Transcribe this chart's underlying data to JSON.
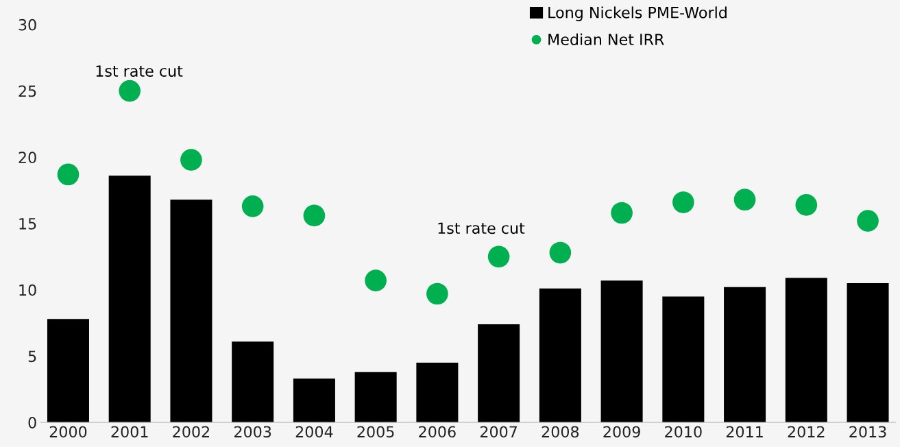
{
  "chart_data": {
    "type": "bar",
    "categories": [
      "2000",
      "2001",
      "2002",
      "2003",
      "2004",
      "2005",
      "2006",
      "2007",
      "2008",
      "2009",
      "2010",
      "2011",
      "2012",
      "2013"
    ],
    "series": [
      {
        "name": "Long Nickels PME-World",
        "color": "#000000",
        "values": [
          7.8,
          18.6,
          16.8,
          6.1,
          3.3,
          3.8,
          4.5,
          7.4,
          10.1,
          10.7,
          9.5,
          10.2,
          10.9,
          10.5
        ]
      },
      {
        "name": "Median Net IRR",
        "type": "scatter",
        "color": "#00b050",
        "values": [
          18.7,
          25.0,
          19.8,
          16.3,
          15.6,
          10.7,
          9.7,
          12.5,
          12.8,
          15.8,
          16.6,
          16.8,
          16.4,
          15.2
        ]
      }
    ],
    "annotations": [
      "1st rate cut",
      "1st rate cut"
    ],
    "ylim": [
      0,
      30
    ],
    "yticks": [
      0,
      5,
      10,
      15,
      20,
      25,
      30
    ],
    "grid": false,
    "legend": "top right",
    "marker": "circle"
  }
}
